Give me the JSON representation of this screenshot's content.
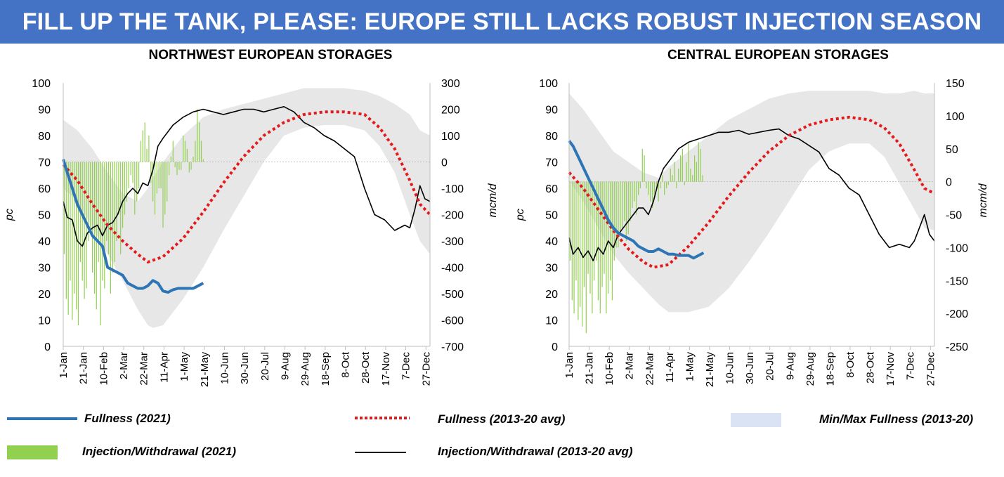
{
  "banner": {
    "title": "FILL UP THE TANK, PLEASE: EUROPE STILL LACKS ROBUST INJECTION SEASON"
  },
  "colors": {
    "banner": "#4472c4",
    "fullness_2021": "#2e75b6",
    "fullness_avg": "#e31a1c",
    "minmax": "#e7e7e7",
    "minmax_legend": "#dae3f3",
    "injection_2021": "#92d050",
    "injection_avg": "#000000"
  },
  "legend": {
    "fullness_2021": "Fullness (2021)",
    "fullness_avg": "Fullness (2013-20 avg)",
    "minmax": "Min/Max Fullness (2013-20)",
    "injection_2021": "Injection/Withdrawal (2021)",
    "injection_avg": "Injection/Withdrawal (2013-20 avg)"
  },
  "chart_data": [
    {
      "type": "line",
      "title": "NORTHWEST EUROPEAN STORAGES",
      "ylabel": "pc",
      "y2label": "mcm/d",
      "ylim": [
        0,
        100
      ],
      "y2lim": [
        -700,
        300
      ],
      "yticks": [
        "0",
        "10",
        "20",
        "30",
        "40",
        "50",
        "60",
        "70",
        "80",
        "90",
        "100"
      ],
      "y2ticks": [
        "-700",
        "-600",
        "-500",
        "-400",
        "-300",
        "-200",
        "-100",
        "0",
        "100",
        "200",
        "300"
      ],
      "xlim": [
        1,
        365
      ],
      "xticks": [
        "1-Jan",
        "21-Jan",
        "10-Feb",
        "2-Mar",
        "22-Mar",
        "11-Apr",
        "1-May",
        "21-May",
        "10-Jun",
        "30-Jun",
        "20-Jul",
        "9-Aug",
        "29-Aug",
        "18-Sep",
        "8-Oct",
        "28-Oct",
        "17-Nov",
        "7-Dec",
        "27-Dec"
      ],
      "series": [
        {
          "name": "Fullness (2021)",
          "axis": "left",
          "x": [
            1,
            5,
            10,
            15,
            20,
            25,
            30,
            35,
            40,
            45,
            50,
            55,
            60,
            65,
            70,
            75,
            80,
            85,
            90,
            95,
            100,
            105,
            110,
            115,
            120,
            125,
            130,
            135,
            140
          ],
          "y": [
            71,
            66,
            60,
            54,
            50,
            46,
            42,
            40,
            38,
            30,
            29,
            28,
            27,
            24,
            23,
            22,
            22,
            23,
            25,
            24,
            21,
            20.5,
            21.5,
            22,
            22,
            22,
            22,
            23,
            24
          ]
        },
        {
          "name": "Fullness (2013-20 avg)",
          "axis": "left",
          "x": [
            1,
            15,
            30,
            45,
            60,
            75,
            85,
            100,
            120,
            140,
            160,
            180,
            200,
            220,
            240,
            260,
            280,
            300,
            315,
            330,
            345,
            355,
            365
          ],
          "y": [
            69,
            63,
            54,
            46,
            40,
            35,
            32,
            34,
            41,
            51,
            62,
            72,
            80,
            85,
            88,
            89,
            89,
            88,
            83,
            75,
            63,
            54,
            50
          ]
        },
        {
          "name": "Min/Max Fullness (2013-20)",
          "axis": "left",
          "kind": "band",
          "x": [
            1,
            15,
            30,
            45,
            60,
            75,
            85,
            90,
            100,
            120,
            140,
            160,
            180,
            200,
            220,
            240,
            260,
            280,
            300,
            315,
            330,
            345,
            355,
            365
          ],
          "min": [
            60,
            55,
            45,
            35,
            25,
            14,
            8,
            7,
            8,
            18,
            30,
            44,
            57,
            70,
            80,
            83,
            84,
            84,
            82,
            76,
            66,
            50,
            40,
            35
          ],
          "max": [
            86,
            82,
            75,
            66,
            58,
            55,
            60,
            64,
            70,
            80,
            87,
            90,
            92,
            94,
            96,
            98,
            98,
            98,
            97,
            95,
            92,
            88,
            82,
            80
          ]
        },
        {
          "name": "Injection/Withdrawal (2021)",
          "axis": "right",
          "kind": "bars",
          "x": [
            2,
            4,
            6,
            8,
            10,
            12,
            14,
            16,
            18,
            20,
            22,
            24,
            26,
            28,
            30,
            32,
            34,
            36,
            38,
            40,
            42,
            44,
            46,
            48,
            50,
            52,
            54,
            56,
            58,
            60,
            62,
            64,
            66,
            68,
            70,
            72,
            74,
            76,
            78,
            80,
            82,
            84,
            86,
            88,
            90,
            92,
            94,
            96,
            98,
            100,
            102,
            104,
            106,
            108,
            110,
            112,
            114,
            116,
            118,
            120,
            122,
            124,
            126,
            128,
            130,
            132,
            134,
            136,
            138,
            140
          ],
          "y": [
            -350,
            -520,
            -580,
            -450,
            -600,
            -500,
            -560,
            -620,
            -380,
            -450,
            -520,
            -480,
            -300,
            -250,
            -420,
            -500,
            -560,
            -380,
            -620,
            -450,
            -480,
            -300,
            -350,
            -500,
            -420,
            -380,
            -300,
            -200,
            -350,
            -250,
            -200,
            -150,
            -100,
            -50,
            -80,
            -200,
            -150,
            -100,
            80,
            120,
            150,
            50,
            100,
            -80,
            -150,
            -200,
            -120,
            -100,
            -100,
            -250,
            -200,
            -150,
            -50,
            20,
            80,
            -20,
            -50,
            -30,
            -30,
            100,
            80,
            50,
            -40,
            -30,
            20,
            80,
            200,
            150,
            80,
            10
          ]
        },
        {
          "name": "Injection/Withdrawal (2013-20 avg)",
          "axis": "right",
          "x": [
            1,
            5,
            10,
            15,
            20,
            25,
            30,
            35,
            40,
            45,
            50,
            55,
            60,
            65,
            70,
            75,
            80,
            85,
            90,
            95,
            100,
            110,
            120,
            130,
            140,
            150,
            160,
            170,
            180,
            190,
            200,
            210,
            220,
            230,
            240,
            250,
            260,
            270,
            280,
            290,
            300,
            310,
            320,
            330,
            340,
            345,
            350,
            355,
            360,
            365
          ],
          "y": [
            -150,
            -210,
            -220,
            -300,
            -320,
            -270,
            -250,
            -240,
            -280,
            -240,
            -230,
            -200,
            -150,
            -120,
            -100,
            -120,
            -80,
            -90,
            -30,
            60,
            90,
            140,
            170,
            190,
            200,
            190,
            180,
            190,
            200,
            200,
            190,
            200,
            210,
            190,
            150,
            130,
            100,
            80,
            50,
            20,
            -100,
            -200,
            -220,
            -260,
            -240,
            -250,
            -180,
            -90,
            -140,
            -150
          ]
        }
      ]
    },
    {
      "type": "line",
      "title": "CENTRAL EUROPEAN STORAGES",
      "ylabel": "pc",
      "y2label": "mcm/d",
      "ylim": [
        0,
        100
      ],
      "y2lim": [
        -250,
        150
      ],
      "yticks": [
        "0",
        "10",
        "20",
        "30",
        "40",
        "50",
        "60",
        "70",
        "80",
        "90",
        "100"
      ],
      "y2ticks": [
        "-250",
        "-200",
        "-150",
        "-100",
        "-50",
        "0",
        "50",
        "100",
        "150"
      ],
      "xlim": [
        1,
        365
      ],
      "xticks": [
        "1-Jan",
        "21-Jan",
        "10-Feb",
        "2-Mar",
        "22-Mar",
        "11-Apr",
        "1-May",
        "21-May",
        "10-Jun",
        "30-Jun",
        "20-Jul",
        "9-Aug",
        "29-Aug",
        "18-Sep",
        "8-Oct",
        "28-Oct",
        "17-Nov",
        "7-Dec",
        "27-Dec"
      ],
      "series": [
        {
          "name": "Fullness (2021)",
          "axis": "left",
          "x": [
            1,
            5,
            10,
            15,
            20,
            25,
            30,
            35,
            40,
            45,
            50,
            55,
            60,
            65,
            70,
            75,
            80,
            85,
            90,
            95,
            100,
            105,
            110,
            115,
            120,
            125,
            130,
            135
          ],
          "y": [
            78,
            76,
            72,
            68,
            64,
            60,
            56,
            52,
            48,
            45,
            43,
            42,
            41,
            40,
            38,
            37,
            36,
            36,
            37,
            36,
            35,
            35,
            34.5,
            34.5,
            34.5,
            33.5,
            34.5,
            35.5
          ]
        },
        {
          "name": "Fullness (2013-20 avg)",
          "axis": "left",
          "x": [
            1,
            15,
            30,
            45,
            60,
            75,
            85,
            100,
            120,
            140,
            160,
            180,
            200,
            220,
            240,
            260,
            280,
            300,
            315,
            330,
            345,
            355,
            365
          ],
          "y": [
            66,
            60,
            52,
            44,
            37,
            32,
            30,
            31,
            38,
            47,
            57,
            66,
            74,
            80,
            84,
            86,
            87,
            86,
            83,
            77,
            67,
            60,
            58
          ]
        },
        {
          "name": "Min/Max Fullness (2013-20)",
          "axis": "left",
          "kind": "band",
          "x": [
            1,
            15,
            30,
            45,
            60,
            75,
            90,
            100,
            120,
            140,
            160,
            180,
            200,
            220,
            240,
            260,
            280,
            300,
            315,
            330,
            345,
            355,
            365
          ],
          "min": [
            63,
            55,
            45,
            35,
            28,
            22,
            16,
            13,
            13,
            15,
            22,
            32,
            43,
            55,
            67,
            74,
            77,
            77,
            72,
            62,
            52,
            45,
            44
          ],
          "max": [
            96,
            90,
            82,
            74,
            70,
            66,
            64,
            68,
            74,
            80,
            86,
            90,
            94,
            96,
            97,
            97,
            97,
            97,
            96,
            96,
            97,
            96,
            96
          ]
        },
        {
          "name": "Injection/Withdrawal (2021)",
          "axis": "right",
          "kind": "bars",
          "x": [
            2,
            4,
            6,
            8,
            10,
            12,
            14,
            16,
            18,
            20,
            22,
            24,
            26,
            28,
            30,
            32,
            34,
            36,
            38,
            40,
            42,
            44,
            46,
            48,
            50,
            52,
            54,
            56,
            58,
            60,
            62,
            64,
            66,
            68,
            70,
            72,
            74,
            76,
            78,
            80,
            82,
            84,
            86,
            88,
            90,
            92,
            94,
            96,
            98,
            100,
            102,
            104,
            106,
            108,
            110,
            112,
            114,
            116,
            118,
            120,
            122,
            124,
            126,
            128,
            130,
            132,
            134
          ],
          "y": [
            -120,
            -180,
            -200,
            -150,
            -210,
            -190,
            -220,
            -160,
            -230,
            -140,
            -170,
            -200,
            -150,
            -120,
            -180,
            -200,
            -160,
            -140,
            -200,
            -170,
            -150,
            -180,
            -120,
            -100,
            -100,
            -80,
            -70,
            -60,
            -90,
            -80,
            -60,
            -40,
            -30,
            -50,
            -20,
            -10,
            50,
            40,
            -10,
            -20,
            -30,
            -40,
            -20,
            -10,
            -30,
            -10,
            10,
            -20,
            -10,
            -5,
            20,
            10,
            30,
            -10,
            20,
            40,
            50,
            -5,
            30,
            60,
            20,
            10,
            40,
            30,
            60,
            50,
            10
          ]
        },
        {
          "name": "Injection/Withdrawal (2013-20 avg)",
          "axis": "right",
          "x": [
            1,
            5,
            10,
            15,
            20,
            25,
            30,
            35,
            40,
            45,
            50,
            55,
            60,
            65,
            70,
            75,
            80,
            85,
            90,
            95,
            100,
            110,
            120,
            130,
            140,
            150,
            160,
            170,
            180,
            190,
            200,
            210,
            220,
            230,
            240,
            250,
            260,
            270,
            280,
            290,
            300,
            310,
            320,
            330,
            340,
            345,
            350,
            355,
            360,
            365
          ],
          "y": [
            -85,
            -110,
            -100,
            -115,
            -105,
            -120,
            -100,
            -110,
            -90,
            -100,
            -80,
            -70,
            -60,
            -50,
            -40,
            -40,
            -50,
            -30,
            0,
            20,
            30,
            50,
            60,
            65,
            70,
            75,
            75,
            78,
            72,
            75,
            78,
            80,
            70,
            65,
            55,
            45,
            20,
            10,
            -10,
            -20,
            -50,
            -80,
            -100,
            -95,
            -100,
            -90,
            -70,
            -50,
            -80,
            -90
          ]
        }
      ]
    }
  ]
}
